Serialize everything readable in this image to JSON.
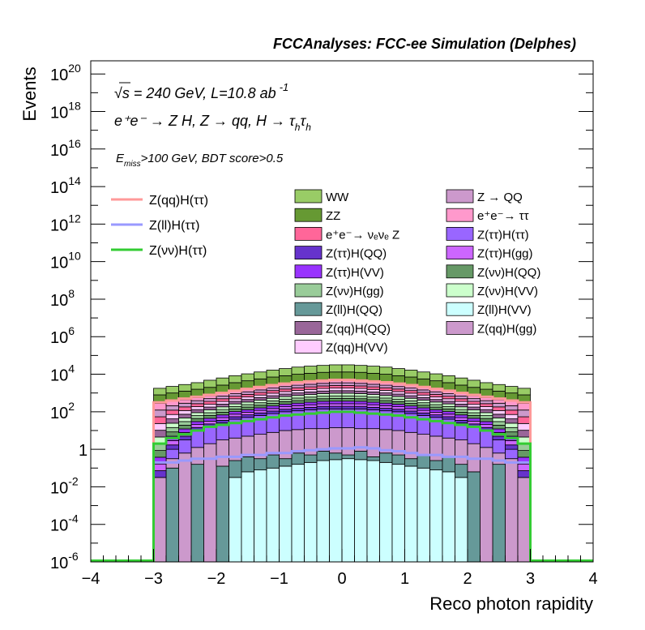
{
  "header": {
    "experiment": "FCCAnalyses: FCC-ee Simulation (Delphes)",
    "energy_line": "√s = 240 GeV, L=10.8 ab",
    "energy_exp": "-1",
    "process_line": "e⁺e⁻ → Z H, Z → qq, H → τ",
    "process_sub1": "h",
    "process_tau2": "τ",
    "process_sub2": "h",
    "selection_e": "E",
    "selection_sub": "miss",
    "selection_rest": ">100 GeV, BDT score>0.5"
  },
  "chart_data": {
    "type": "area",
    "xlabel": "Reco photon rapidity",
    "ylabel": "Events",
    "xlim": [
      -4,
      4
    ],
    "ylim_log10": [
      -6,
      20.7
    ],
    "log_y": true,
    "x_ticks": [
      "−4",
      "−3",
      "−2",
      "−1",
      "0",
      "1",
      "2",
      "3",
      "4"
    ],
    "y_ticks": [
      {
        "base": "10",
        "exp": "20",
        "v": 20
      },
      {
        "base": "10",
        "exp": "18",
        "v": 18
      },
      {
        "base": "10",
        "exp": "16",
        "v": 16
      },
      {
        "base": "10",
        "exp": "14",
        "v": 14
      },
      {
        "base": "10",
        "exp": "12",
        "v": 12
      },
      {
        "base": "10",
        "exp": "10",
        "v": 10
      },
      {
        "base": "10",
        "exp": "8",
        "v": 8
      },
      {
        "base": "10",
        "exp": "6",
        "v": 6
      },
      {
        "base": "10",
        "exp": "4",
        "v": 4
      },
      {
        "base": "10",
        "exp": "2",
        "v": 2
      },
      {
        "base": "1",
        "exp": "",
        "v": 0
      },
      {
        "base": "10",
        "exp": "-2",
        "v": -2
      },
      {
        "base": "10",
        "exp": "-4",
        "v": -4
      },
      {
        "base": "10",
        "exp": "-6",
        "v": -6
      }
    ],
    "bins_x": [
      -3.0,
      -2.8,
      -2.6,
      -2.4,
      -2.2,
      -2.0,
      -1.8,
      -1.6,
      -1.4,
      -1.2,
      -1.0,
      -0.8,
      -0.6,
      -0.4,
      -0.2,
      0.0,
      0.2,
      0.4,
      0.6,
      0.8,
      1.0,
      1.2,
      1.4,
      1.6,
      1.8,
      2.0,
      2.2,
      2.4,
      2.6,
      2.8
    ],
    "stack_log10": {
      "top": [
        3.25,
        3.35,
        3.45,
        3.55,
        3.68,
        3.8,
        3.92,
        4.02,
        4.12,
        4.22,
        4.3,
        4.38,
        4.43,
        4.47,
        4.5,
        4.5,
        4.47,
        4.43,
        4.38,
        4.3,
        4.22,
        4.12,
        4.02,
        3.92,
        3.8,
        3.68,
        3.55,
        3.45,
        3.35,
        3.25
      ],
      "ww_zz_boundary": [
        2.9,
        3.0,
        3.1,
        3.2,
        3.3,
        3.42,
        3.55,
        3.65,
        3.75,
        3.85,
        3.92,
        4.0,
        4.05,
        4.1,
        4.12,
        4.12,
        4.1,
        4.05,
        4.0,
        3.92,
        3.85,
        3.75,
        3.65,
        3.55,
        3.42,
        3.3,
        3.2,
        3.1,
        3.0,
        2.9
      ],
      "pink_top": [
        2.45,
        2.55,
        2.65,
        2.75,
        2.85,
        2.98,
        3.1,
        3.2,
        3.3,
        3.4,
        3.48,
        3.55,
        3.6,
        3.65,
        3.68,
        3.68,
        3.65,
        3.6,
        3.55,
        3.48,
        3.4,
        3.3,
        3.2,
        3.1,
        2.98,
        2.85,
        2.75,
        2.65,
        2.55,
        2.45
      ],
      "purple_top": [
        -3.5,
        0.0,
        0.5,
        1.0,
        1.2,
        1.4,
        1.6,
        1.7,
        1.8,
        1.9,
        2.0,
        2.05,
        2.1,
        2.15,
        2.15,
        2.15,
        2.15,
        2.1,
        2.05,
        2.0,
        1.9,
        1.8,
        1.7,
        1.6,
        1.4,
        1.2,
        1.0,
        0.5,
        0.0,
        -3.5
      ],
      "mauve_top": [
        -1.5,
        -0.5,
        -0.2,
        0.1,
        0.3,
        0.5,
        0.6,
        0.7,
        0.8,
        0.9,
        1.0,
        1.05,
        1.1,
        1.1,
        1.15,
        1.15,
        1.1,
        1.1,
        1.05,
        1.0,
        0.9,
        0.8,
        0.7,
        0.6,
        0.5,
        0.3,
        0.1,
        -0.2,
        -0.5,
        -1.5
      ],
      "teal_top": [
        -6,
        -1.0,
        -6,
        -0.8,
        -6,
        -0.9,
        -0.6,
        -0.4,
        -0.5,
        -0.3,
        -0.5,
        -0.2,
        -0.3,
        -0.1,
        -0.2,
        -0.3,
        -0.1,
        -0.4,
        -0.2,
        -0.3,
        -0.5,
        -0.3,
        -0.6,
        -0.4,
        -0.8,
        -1.2,
        -6,
        -0.8,
        -6,
        -6
      ],
      "cyan_top": [
        -6,
        -6,
        -6,
        -6,
        -6,
        -6,
        -1.5,
        -1.2,
        -1.1,
        -1.0,
        -0.9,
        -0.8,
        -0.7,
        -0.6,
        -0.55,
        -0.5,
        -0.55,
        -0.6,
        -0.7,
        -0.8,
        -0.9,
        -1.0,
        -1.1,
        -1.2,
        -1.5,
        -6,
        -6,
        -6,
        -6,
        -6
      ]
    },
    "lines_log10": {
      "zqq_htautau": [
        2.5,
        2.6,
        2.7,
        2.8,
        2.9,
        3.0,
        3.12,
        3.22,
        3.32,
        3.42,
        3.5,
        3.57,
        3.62,
        3.66,
        3.7,
        3.7,
        3.66,
        3.62,
        3.57,
        3.5,
        3.42,
        3.32,
        3.22,
        3.12,
        3.0,
        2.9,
        2.8,
        2.7,
        2.6,
        2.5
      ],
      "zll_htautau": [
        -0.7,
        -0.7,
        -0.6,
        -0.5,
        -0.5,
        -0.4,
        -0.4,
        -0.3,
        -0.3,
        -0.2,
        -0.2,
        -0.1,
        -0.05,
        0.0,
        0.05,
        0.05,
        0.1,
        0.05,
        -0.05,
        -0.1,
        -0.2,
        -0.3,
        -0.3,
        -0.4,
        -0.4,
        -0.5,
        -0.5,
        -0.6,
        -0.7,
        -0.7
      ],
      "znunu_htautau": [
        0.3,
        0.6,
        0.8,
        1.0,
        1.2,
        1.3,
        1.4,
        1.5,
        1.6,
        1.7,
        1.8,
        1.85,
        1.9,
        1.95,
        2.0,
        2.0,
        1.95,
        1.9,
        1.85,
        1.8,
        1.7,
        1.6,
        1.5,
        1.4,
        1.3,
        1.2,
        1.0,
        0.8,
        0.6,
        0.3
      ]
    },
    "line_legend": [
      {
        "label": "Z(qq)H(ττ)",
        "color": "#ff9999"
      },
      {
        "label": "Z(ll)H(ττ)",
        "color": "#9999ff"
      },
      {
        "label": "Z(νν)H(ττ)",
        "color": "#33cc33"
      }
    ],
    "stack_legend": [
      {
        "label": "WW",
        "color": "#99cc66"
      },
      {
        "label": "Z → QQ",
        "color": "#cc99cc"
      },
      {
        "label": "ZZ",
        "color": "#669933"
      },
      {
        "label": "e⁺e⁻→ ττ",
        "color": "#ff99cc"
      },
      {
        "label": "e⁺e⁻→ νₑνₑ Z",
        "color": "#ff6699"
      },
      {
        "label": "Z(ττ)H(ττ)",
        "color": "#9966ff"
      },
      {
        "label": "Z(ττ)H(QQ)",
        "color": "#6633cc"
      },
      {
        "label": "Z(ττ)H(gg)",
        "color": "#cc66ff"
      },
      {
        "label": "Z(ττ)H(VV)",
        "color": "#9933ff"
      },
      {
        "label": "Z(νν)H(QQ)",
        "color": "#669966"
      },
      {
        "label": "Z(νν)H(gg)",
        "color": "#99cc99"
      },
      {
        "label": "Z(νν)H(VV)",
        "color": "#ccffcc"
      },
      {
        "label": "Z(ll)H(QQ)",
        "color": "#669999"
      },
      {
        "label": "Z(ll)H(VV)",
        "color": "#ccffff"
      },
      {
        "label": "Z(qq)H(QQ)",
        "color": "#996699"
      },
      {
        "label": "Z(qq)H(gg)",
        "color": "#cc99cc"
      },
      {
        "label": "Z(qq)H(VV)",
        "color": "#ffccff"
      }
    ]
  }
}
